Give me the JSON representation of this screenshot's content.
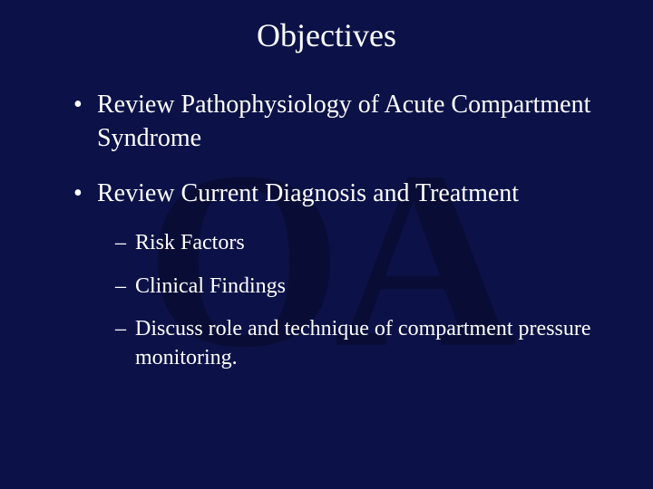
{
  "slide": {
    "title": "Objectives",
    "background_color": "#0c1248",
    "text_color": "#ffffff",
    "title_fontsize": 36,
    "body_fontsize": 28,
    "sub_fontsize": 24,
    "font_family": "Georgia, 'Times New Roman', serif",
    "watermark_color": "rgba(0,0,0,0.25)",
    "bullets": [
      {
        "text": "Review Pathophysiology of Acute Compartment Syndrome",
        "sub": []
      },
      {
        "text": "Review Current Diagnosis and Treatment",
        "sub": [
          "Risk Factors",
          "Clinical Findings",
          "Discuss role and technique of compartment pressure monitoring."
        ]
      }
    ]
  }
}
